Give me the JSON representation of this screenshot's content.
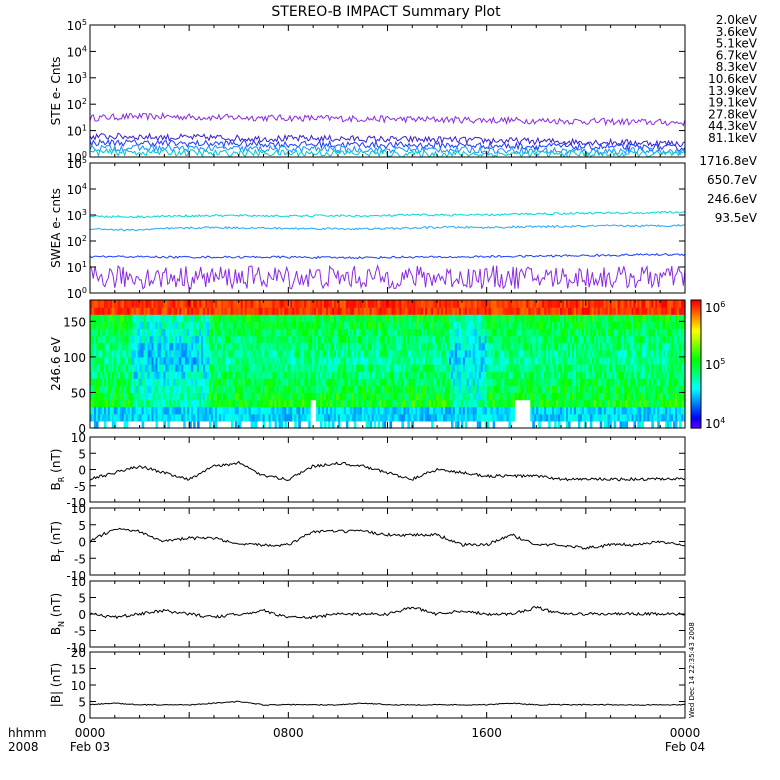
{
  "title": "STEREO-B IMPACT Summary Plot",
  "side_stamp": "Wed Dec 14 22:35:43 2008",
  "x_axis": {
    "row1_label": "hhmm",
    "row2_label": "2008",
    "ticks": [
      {
        "t": 0,
        "label": "0000",
        "date": "Feb 03"
      },
      {
        "t": 8,
        "label": "0800",
        "date": ""
      },
      {
        "t": 16,
        "label": "1600",
        "date": ""
      },
      {
        "t": 24,
        "label": "0000",
        "date": "Feb 04"
      }
    ],
    "range_hours": [
      0,
      24
    ]
  },
  "chart_data": [
    {
      "id": "ste",
      "type": "line",
      "ylabel": "STE e- Cnts",
      "yscale": "log",
      "ylim": [
        1,
        100000
      ],
      "yticks": [
        {
          "v": 1,
          "m": "10",
          "e": "0"
        },
        {
          "v": 10,
          "m": "10",
          "e": "1"
        },
        {
          "v": 100,
          "m": "10",
          "e": "2"
        },
        {
          "v": 1000,
          "m": "10",
          "e": "3"
        },
        {
          "v": 10000,
          "m": "10",
          "e": "4"
        },
        {
          "v": 100000,
          "m": "10",
          "e": "5"
        }
      ],
      "series": [
        {
          "name": "2.0keV",
          "color": "#8a2be2",
          "values": [
            30,
            34,
            34,
            32,
            31,
            30,
            29,
            28,
            27,
            26,
            25,
            24,
            23,
            22,
            21,
            20
          ]
        },
        {
          "name": "3.6keV",
          "color": "#3a1fd0",
          "values": [
            6,
            6,
            5.5,
            5.5,
            5,
            5,
            5,
            4.8,
            4.6,
            4.5,
            4.2,
            4,
            3.8,
            3.6,
            3.4,
            3.2
          ]
        },
        {
          "name": "5.1keV",
          "color": "#1a3cff",
          "values": [
            3.5,
            3.5,
            3.3,
            3.2,
            3.2,
            3,
            3,
            2.9,
            2.8,
            2.8,
            2.7,
            2.6,
            2.5,
            2.4,
            2.3,
            2.2
          ]
        },
        {
          "name": "6.7keV",
          "color": "#1e90ff",
          "values": [
            2.2,
            2.2,
            2.1,
            2.1,
            2,
            2,
            2,
            1.9,
            1.9,
            1.9,
            1.8,
            1.8,
            1.7,
            1.7,
            1.7,
            1.6
          ]
        },
        {
          "name": "8.3keV",
          "color": "#00c8c8",
          "values": [
            1.5,
            1.5,
            1.5,
            1.4,
            1.4,
            1.4,
            1.4,
            1.4,
            1.3,
            1.3,
            1.3,
            1.3,
            1.3,
            1.3,
            1.3,
            1.3
          ]
        },
        {
          "name": "10.6keV",
          "color": "#00b400",
          "values": []
        },
        {
          "name": "13.9keV",
          "color": "#78c800",
          "values": []
        },
        {
          "name": "19.1keV",
          "color": "#c8c800",
          "values": []
        },
        {
          "name": "27.8keV",
          "color": "#e6c800",
          "values": []
        },
        {
          "name": "44.3keV",
          "color": "#ff9600",
          "values": []
        },
        {
          "name": "81.1keV",
          "color": "#e62800",
          "values": []
        }
      ]
    },
    {
      "id": "swea",
      "type": "line",
      "ylabel": "SWEA e- cnts",
      "yscale": "log",
      "ylim": [
        1,
        100000
      ],
      "yticks": [
        {
          "v": 1,
          "m": "10",
          "e": "0"
        },
        {
          "v": 10,
          "m": "10",
          "e": "1"
        },
        {
          "v": 100,
          "m": "10",
          "e": "2"
        },
        {
          "v": 1000,
          "m": "10",
          "e": "3"
        },
        {
          "v": 10000,
          "m": "10",
          "e": "4"
        },
        {
          "v": 100000,
          "m": "10",
          "e": "5"
        }
      ],
      "series": [
        {
          "name": "1716.8eV",
          "color": "#8a2be2",
          "values": [
            4,
            4,
            4,
            4,
            4,
            4,
            4,
            4,
            4,
            4,
            4,
            4,
            4,
            4,
            4,
            4
          ]
        },
        {
          "name": "650.7eV",
          "color": "#1a3cff",
          "values": [
            25,
            25,
            24,
            24,
            24,
            24,
            23,
            23,
            24,
            24,
            25,
            26,
            27,
            28,
            30,
            30
          ]
        },
        {
          "name": "246.6eV",
          "color": "#20a8ff",
          "values": [
            300,
            260,
            300,
            330,
            320,
            300,
            300,
            290,
            310,
            340,
            330,
            350,
            360,
            380,
            380,
            400
          ]
        },
        {
          "name": "93.5eV",
          "color": "#00d8d8",
          "values": [
            900,
            850,
            900,
            950,
            950,
            900,
            950,
            900,
            1000,
            1000,
            1000,
            1100,
            1150,
            1200,
            1200,
            1300
          ]
        }
      ]
    },
    {
      "id": "spectrogram",
      "type": "heatmap",
      "ylabel": "246.6 eV",
      "ylim": [
        0,
        180
      ],
      "yticks": [
        0,
        50,
        100,
        150
      ],
      "colorbar": {
        "scale": "log",
        "range": [
          10000,
          1000000
        ],
        "ticks": [
          {
            "v": 10000,
            "m": "10",
            "e": "4"
          },
          {
            "v": 100000,
            "m": "10",
            "e": "5"
          },
          {
            "v": 1000000,
            "m": "10",
            "e": "6"
          }
        ]
      }
    },
    {
      "id": "br",
      "type": "line",
      "ylabel_main": "B",
      "ylabel_sub": "R",
      "ylabel_unit": " (nT)",
      "ylim": [
        -10,
        10
      ],
      "yticks": [
        -10,
        -5,
        0,
        5,
        10
      ],
      "x": [
        0,
        1,
        2,
        3,
        4,
        5,
        6,
        7,
        8,
        9,
        10,
        11,
        12,
        13,
        14,
        15,
        16,
        17,
        18,
        19,
        20,
        21,
        22,
        23,
        24
      ],
      "values": [
        -3,
        -1,
        1,
        -1,
        -3,
        1,
        2,
        -2,
        -3,
        1,
        2,
        1,
        -1,
        -3,
        0,
        -1,
        -2,
        -2,
        -2,
        -3,
        -3,
        -3,
        -3,
        -3,
        -3
      ]
    },
    {
      "id": "bt",
      "type": "line",
      "ylabel_main": "B",
      "ylabel_sub": "T",
      "ylabel_unit": " (nT)",
      "ylim": [
        -10,
        10
      ],
      "yticks": [
        -10,
        -5,
        0,
        5,
        10
      ],
      "x": [
        0,
        1,
        2,
        3,
        4,
        5,
        6,
        7,
        8,
        9,
        10,
        11,
        12,
        13,
        14,
        15,
        16,
        17,
        18,
        19,
        20,
        21,
        22,
        23,
        24
      ],
      "values": [
        0,
        4,
        3,
        0,
        1,
        1,
        -1,
        -1,
        -1,
        3,
        3,
        3,
        2,
        2,
        2,
        -1,
        -1,
        2,
        -1,
        -1,
        -2,
        -1,
        -1,
        0,
        -1
      ]
    },
    {
      "id": "bn",
      "type": "line",
      "ylabel_main": "B",
      "ylabel_sub": "N",
      "ylabel_unit": " (nT)",
      "ylim": [
        -10,
        10
      ],
      "yticks": [
        -10,
        -5,
        0,
        5,
        10
      ],
      "x": [
        0,
        1,
        2,
        3,
        4,
        5,
        6,
        7,
        8,
        9,
        10,
        11,
        12,
        13,
        14,
        15,
        16,
        17,
        18,
        19,
        20,
        21,
        22,
        23,
        24
      ],
      "values": [
        0,
        -1,
        0,
        1,
        0,
        -1,
        0,
        1,
        -1,
        -1,
        0,
        0,
        0,
        2,
        0,
        1,
        0,
        0,
        2,
        0,
        0,
        0,
        0,
        0,
        0
      ]
    },
    {
      "id": "bmag",
      "type": "line",
      "ylabel_main": "|B| (nT)",
      "ylim": [
        0,
        20
      ],
      "yticks": [
        0,
        5,
        10,
        15,
        20
      ],
      "x": [
        0,
        1,
        2,
        3,
        4,
        5,
        6,
        7,
        8,
        9,
        10,
        11,
        12,
        13,
        14,
        15,
        16,
        17,
        18,
        19,
        20,
        21,
        22,
        23,
        24
      ],
      "values": [
        4,
        4.5,
        4,
        4,
        4,
        4.5,
        5,
        4,
        4,
        4,
        4,
        4.5,
        4,
        4,
        4,
        4,
        4,
        4.5,
        4,
        4,
        4,
        4,
        4,
        4,
        4
      ]
    }
  ]
}
